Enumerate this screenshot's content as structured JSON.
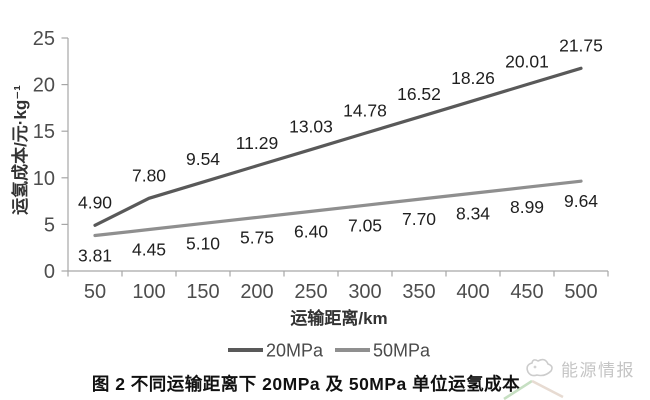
{
  "chart_data": {
    "type": "line",
    "categories": [
      50,
      100,
      150,
      200,
      250,
      300,
      350,
      400,
      450,
      500
    ],
    "series": [
      {
        "name": "20MPa",
        "color": "#595959",
        "label_position": "above",
        "values": [
          4.9,
          7.8,
          9.54,
          11.29,
          13.03,
          14.78,
          16.52,
          18.26,
          20.01,
          21.75
        ]
      },
      {
        "name": "50MPa",
        "color": "#8f8f8f",
        "label_position": "below",
        "values": [
          3.81,
          4.45,
          5.1,
          5.75,
          6.4,
          7.05,
          7.7,
          8.34,
          8.99,
          9.64
        ]
      }
    ],
    "title": "",
    "xlabel": "运输距离/km",
    "ylabel": "运氢成本/元·kg⁻¹",
    "ylim": [
      0,
      25
    ],
    "ytick_step": 5,
    "grid": false,
    "legend_position": "bottom"
  },
  "caption": "图 2 不同运输距离下 20MPa 及 50MPa 单位运氢成本",
  "watermark": {
    "text": "能源情报"
  },
  "colors": {
    "axis": "#a6a6a6",
    "tick_label": "#4d4d4d",
    "data_label": "#1f1f1f",
    "legend_text": "#4a4a4a",
    "background": "#ffffff",
    "watermark": "#c5c5c5",
    "chevron_green": "#c6dfc2",
    "chevron_peach": "#e7dbd2"
  }
}
